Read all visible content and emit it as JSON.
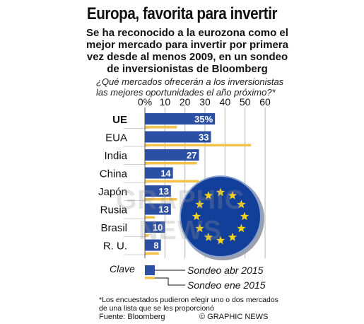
{
  "header": {
    "title": "Europa, favorita para invertir",
    "subtitle": "Se ha reconocido a la eurozona como el mejor mercado para invertir por primera vez desde al menos 2009, en un sondeo de inversionistas de Bloomberg",
    "question": "¿Qué mercados ofrecerán a los inversionistas las mejores oportunidades el año próximo?*"
  },
  "colors": {
    "primary_bar": "#2b4fa3",
    "secondary_bar": "#f2c24b",
    "flag_blue": "#123f9a",
    "star": "#f6d21e"
  },
  "chart_data": {
    "type": "bar",
    "orientation": "horizontal",
    "x_ticks": [
      "0%",
      "10",
      "20",
      "30",
      "40",
      "50",
      "60"
    ],
    "xlim": [
      0,
      60
    ],
    "categories": [
      "UE",
      "EUA",
      "India",
      "China",
      "Japón",
      "Rusia",
      "Brasil",
      "R. U."
    ],
    "series": [
      {
        "name": "Sondeo abr 2015",
        "values": [
          35,
          33,
          27,
          14,
          13,
          13,
          10,
          8
        ],
        "labels": [
          "35%",
          "33",
          "27",
          "14",
          "13",
          "13",
          "10",
          "8"
        ]
      },
      {
        "name": "Sondeo ene 2015",
        "values": [
          16,
          53,
          26,
          27,
          16,
          5,
          2,
          7
        ]
      }
    ],
    "legend_title": "Clave"
  },
  "footer": {
    "footnote": "*Los encuestados pudieron elegir uno o dos mercados de una lista que se les proporcionó",
    "source": "Fuente: Bloomberg",
    "credit": "© GRAPHIC NEWS"
  },
  "watermark": "GRAPHIC NEWS"
}
